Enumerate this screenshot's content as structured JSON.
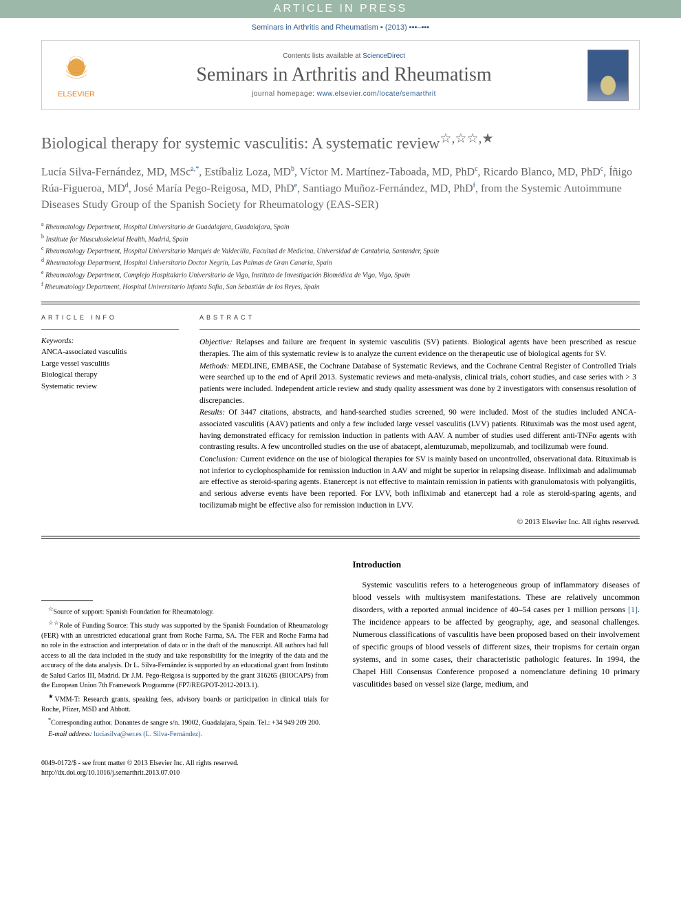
{
  "banner": "ARTICLE IN PRESS",
  "journal_ref": "Seminars in Arthritis and Rheumatism ▪ (2013) ▪▪▪–▪▪▪",
  "header": {
    "publisher": "ELSEVIER",
    "contents_prefix": "Contents lists available at ",
    "contents_link": "ScienceDirect",
    "journal_title": "Seminars in Arthritis and Rheumatism",
    "homepage_prefix": "journal homepage: ",
    "homepage_url": "www.elsevier.com/locate/semarthrit"
  },
  "article": {
    "title": "Biological therapy for systemic vasculitis: A systematic review",
    "title_marks": "☆,☆☆,★",
    "authors_html": "Lucía Silva-Fernández, MD, MSc{a,*}, Estíbaliz Loza, MD{b}, Víctor M. Martínez-Taboada, MD, PhD{c}, Ricardo Blanco, MD, PhD{c}, Íñigo Rúa-Figueroa, MD{d}, José María Pego-Reigosa, MD, PhD{e}, Santiago Muñoz-Fernández, MD, PhD{f}, from the Systemic Autoimmune Diseases Study Group of the Spanish Society for Rheumatology (EAS-SER)",
    "affiliations": [
      {
        "key": "a",
        "text": "Rheumatology Department, Hospital Universitario de Guadalajara, Guadalajara, Spain"
      },
      {
        "key": "b",
        "text": "Institute for Musculoskeletal Health, Madrid, Spain"
      },
      {
        "key": "c",
        "text": "Rheumatology Department, Hospital Universitario Marqués de Valdecilla, Facultad de Medicina, Universidad de Cantabria, Santander, Spain"
      },
      {
        "key": "d",
        "text": "Rheumatology Department, Hospital Universitario Doctor Negrín, Las Palmas de Gran Canaria, Spain"
      },
      {
        "key": "e",
        "text": "Rheumatology Department, Complejo Hospitalario Universitario de Vigo, Instituto de Investigación Biomédica de Vigo, Vigo, Spain"
      },
      {
        "key": "f",
        "text": "Rheumatology Department, Hospital Universitario Infanta Sofía, San Sebastián de los Reyes, Spain"
      }
    ]
  },
  "info": {
    "heading": "article info",
    "keywords_label": "Keywords:",
    "keywords": [
      "ANCA-associated vasculitis",
      "Large vessel vasculitis",
      "Biological therapy",
      "Systematic review"
    ]
  },
  "abstract": {
    "heading": "abstract",
    "sections": [
      {
        "label": "Objective:",
        "text": "Relapses and failure are frequent in systemic vasculitis (SV) patients. Biological agents have been prescribed as rescue therapies. The aim of this systematic review is to analyze the current evidence on the therapeutic use of biological agents for SV."
      },
      {
        "label": "Methods:",
        "text": "MEDLINE, EMBASE, the Cochrane Database of Systematic Reviews, and the Cochrane Central Register of Controlled Trials were searched up to the end of April 2013. Systematic reviews and meta-analysis, clinical trials, cohort studies, and case series with > 3 patients were included. Independent article review and study quality assessment was done by 2 investigators with consensus resolution of discrepancies."
      },
      {
        "label": "Results:",
        "text": "Of 3447 citations, abstracts, and hand-searched studies screened, 90 were included. Most of the studies included ANCA-associated vasculitis (AAV) patients and only a few included large vessel vasculitis (LVV) patients. Rituximab was the most used agent, having demonstrated efficacy for remission induction in patients with AAV. A number of studies used different anti-TNFα agents with contrasting results. A few uncontrolled studies on the use of abatacept, alemtuzumab, mepolizumab, and tocilizumab were found."
      },
      {
        "label": "Conclusion:",
        "text": "Current evidence on the use of biological therapies for SV is mainly based on uncontrolled, observational data. Rituximab is not inferior to cyclophosphamide for remission induction in AAV and might be superior in relapsing disease. Infliximab and adalimumab are effective as steroid-sparing agents. Etanercept is not effective to maintain remission in patients with granulomatosis with polyangiitis, and serious adverse events have been reported. For LVV, both infliximab and etanercept had a role as steroid-sparing agents, and tocilizumab might be effective also for remission induction in LVV."
      }
    ],
    "copyright": "© 2013 Elsevier Inc. All rights reserved."
  },
  "footnotes": {
    "items": [
      {
        "mark": "☆",
        "text": "Source of support: Spanish Foundation for Rheumatology."
      },
      {
        "mark": "☆☆",
        "text": "Role of Funding Source: This study was supported by the Spanish Foundation of Rheumatology (FER) with an unrestricted educational grant from Roche Farma, SA. The FER and Roche Farma had no role in the extraction and interpretation of data or in the draft of the manuscript. All authors had full access to all the data included in the study and take responsibility for the integrity of the data and the accuracy of the data analysis. Dr L. Silva-Fernández is supported by an educational grant from Instituto de Salud Carlos III, Madrid. Dr J.M. Pego-Reigosa is supported by the grant 316265 (BIOCAPS) from the European Union 7th Framework Programme (FP7/REGPOT-2012-2013.1)."
      },
      {
        "mark": "★",
        "text": "VMM-T: Research grants, speaking fees, advisory boards or participation in clinical trials for Roche, Pfizer, MSD and Abbott."
      },
      {
        "mark": "*",
        "text": "Corresponding author. Donantes de sangre s/n. 19002, Guadalajara, Spain. Tel.: +34 949 209 200."
      }
    ],
    "email_label": "E-mail address:",
    "email": "luciasilva@ser.es (L. Silva-Fernández)."
  },
  "introduction": {
    "heading": "Introduction",
    "body": "Systemic vasculitis refers to a heterogeneous group of inflammatory diseases of blood vessels with multisystem manifestations. These are relatively uncommon disorders, with a reported annual incidence of 40–54 cases per 1 million persons [1]. The incidence appears to be affected by geography, age, and seasonal challenges. Numerous classifications of vasculitis have been proposed based on their involvement of specific groups of blood vessels of different sizes, their tropisms for certain organ systems, and in some cases, their characteristic pathologic features. In 1994, the Chapel Hill Consensus Conference proposed a nomenclature defining 10 primary vasculitides based on vessel size (large, medium, and",
    "ref_text": "[1]"
  },
  "footer": {
    "line1": "0049-0172/$ - see front matter © 2013 Elsevier Inc. All rights reserved.",
    "line2": "http://dx.doi.org/10.1016/j.semarthrit.2013.07.010"
  },
  "colors": {
    "banner_bg": "#9bb8a8",
    "link": "#2d5a8c",
    "title_gray": "#666666",
    "elsevier_orange": "#e8801a"
  }
}
